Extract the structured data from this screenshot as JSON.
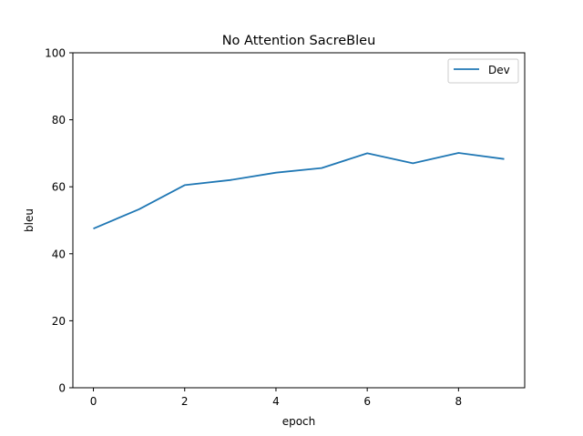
{
  "chart_data": {
    "type": "line",
    "title": "No Attention SacreBleu",
    "xlabel": "epoch",
    "ylabel": "bleu",
    "xlim": [
      -0.45,
      9.45
    ],
    "ylim": [
      0,
      100
    ],
    "xticks": [
      0,
      2,
      4,
      6,
      8
    ],
    "yticks": [
      0,
      20,
      40,
      60,
      80,
      100
    ],
    "grid": false,
    "legend_position": "top-right",
    "series": [
      {
        "name": "Dev",
        "color": "#1f77b4",
        "x": [
          0,
          1,
          2,
          3,
          4,
          5,
          6,
          7,
          8,
          9
        ],
        "y": [
          47.5,
          53.3,
          60.5,
          62.0,
          64.2,
          65.6,
          70.0,
          67.0,
          70.1,
          68.3
        ]
      }
    ]
  }
}
